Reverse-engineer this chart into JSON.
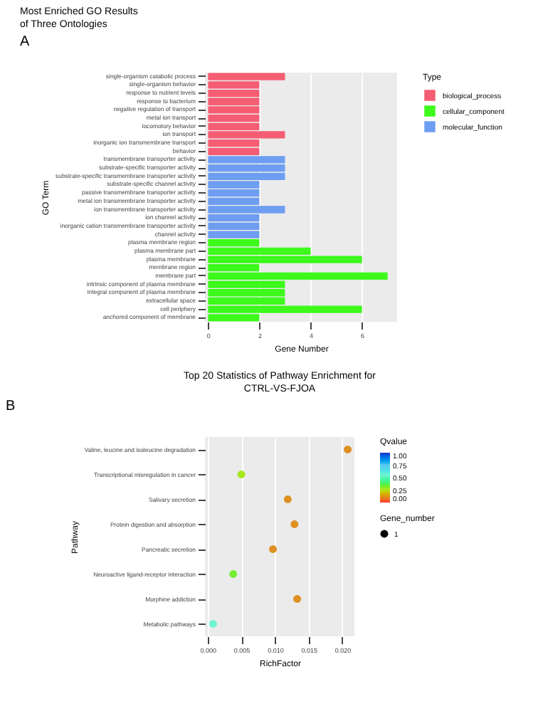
{
  "chart_data": [
    {
      "type": "bar",
      "orientation": "horizontal",
      "title": "Most Enriched GO Results\nof Three Ontologies",
      "xlabel": "Gene Number",
      "ylabel": "GO Term",
      "legend_title": "Type",
      "legend": "right",
      "grid": true,
      "annotations": [
        "A"
      ],
      "categories": [
        "single-organism catabolic process",
        "single-organism behavior",
        "response to nutrient levels",
        "response to bacterium",
        "negative regulation of transport",
        "metal ion transport",
        "locomotory behavior",
        "ion transport",
        "inorganic ion transmembrane transport",
        "behavior",
        "transmembrane transporter activity",
        "substrate-specific transporter activity",
        "substrate-specific transmembrane transporter activity",
        "substrate-specific channel activity",
        "passive transmembrane transporter activity",
        "metal ion transmembrane transporter activity",
        "ion transmembrane transporter activity",
        "ion channel activity",
        "inorganic cation transmembrane transporter activity",
        "channel activity",
        "plasma membrane region",
        "plasma membrane part",
        "plasma membrane",
        "membrane region",
        "membrane part",
        "intrinsic component of plasma membrane",
        "integral component of plasma membrane",
        "extracellular space",
        "cell periphery",
        "anchored component of membrane"
      ],
      "series": [
        {
          "name": "biological_process",
          "color": "#f55d73",
          "values": [
            3,
            2,
            2,
            2,
            2,
            2,
            2,
            3,
            2,
            2,
            null,
            null,
            null,
            null,
            null,
            null,
            null,
            null,
            null,
            null,
            null,
            null,
            null,
            null,
            null,
            null,
            null,
            null,
            null,
            null
          ]
        },
        {
          "name": "cellular_component",
          "color": "#3dfa1c",
          "values": [
            null,
            null,
            null,
            null,
            null,
            null,
            null,
            null,
            null,
            null,
            null,
            null,
            null,
            null,
            null,
            null,
            null,
            null,
            null,
            null,
            2,
            4,
            6,
            2,
            7,
            3,
            3,
            3,
            6,
            2
          ]
        },
        {
          "name": "molecular_function",
          "color": "#6e9ef2",
          "values": [
            null,
            null,
            null,
            null,
            null,
            null,
            null,
            null,
            null,
            null,
            3,
            3,
            3,
            2,
            2,
            2,
            3,
            2,
            2,
            2,
            null,
            null,
            null,
            null,
            null,
            null,
            null,
            null,
            null,
            null
          ]
        }
      ],
      "xlim": [
        -0.12,
        7.37
      ],
      "xticks": [
        0,
        2,
        4,
        6
      ]
    },
    {
      "type": "bubble",
      "orientation": "horizontal",
      "title": "Top 20 Statistics of Pathway Enrichment for\nCTRL-VS-FJOA",
      "xlabel": "RichFactor",
      "ylabel": "Pathway",
      "legend_title": "Gene_number",
      "clabel": "Qvalue",
      "grid": true,
      "marker": "circle",
      "annotations": [
        "B"
      ],
      "categories": [
        "Valine, leucine and isoleucine degradation",
        "Transcriptional misregulation in cancer",
        "Salivary secretion",
        "Protein digestion and absorption",
        "Pancreatic secretion",
        "Neuroactive ligand-receptor interaction",
        "Morphine addiction",
        "Metabolic pathways"
      ],
      "values": [
        0.0208,
        0.005,
        0.0119,
        0.0129,
        0.0097,
        0.0038,
        0.0133,
        0.0008
      ],
      "sizes": [
        1,
        1,
        1,
        1,
        1,
        1,
        1,
        1
      ],
      "size_legend": [
        1
      ],
      "cvalues": [
        0.12,
        0.27,
        0.12,
        0.12,
        0.12,
        0.33,
        0.12,
        0.55
      ],
      "clim": [
        0,
        1
      ],
      "cticks": [
        {
          "value": 0,
          "label": "0.00"
        },
        {
          "value": 0.25,
          "label": "0.25"
        },
        {
          "value": 0.5,
          "label": "0.50"
        },
        {
          "value": 0.75,
          "label": "0.75"
        },
        {
          "value": 1,
          "label": "1.00"
        }
      ],
      "xlim": [
        -0.0004,
        0.0218
      ],
      "xticks": [
        {
          "value": 0,
          "label": "0.000"
        },
        {
          "value": 0.005,
          "label": "0.005"
        },
        {
          "value": 0.01,
          "label": "0.010"
        },
        {
          "value": 0.015,
          "label": "0.015"
        },
        {
          "value": 0.02,
          "label": "0.020"
        }
      ]
    }
  ]
}
